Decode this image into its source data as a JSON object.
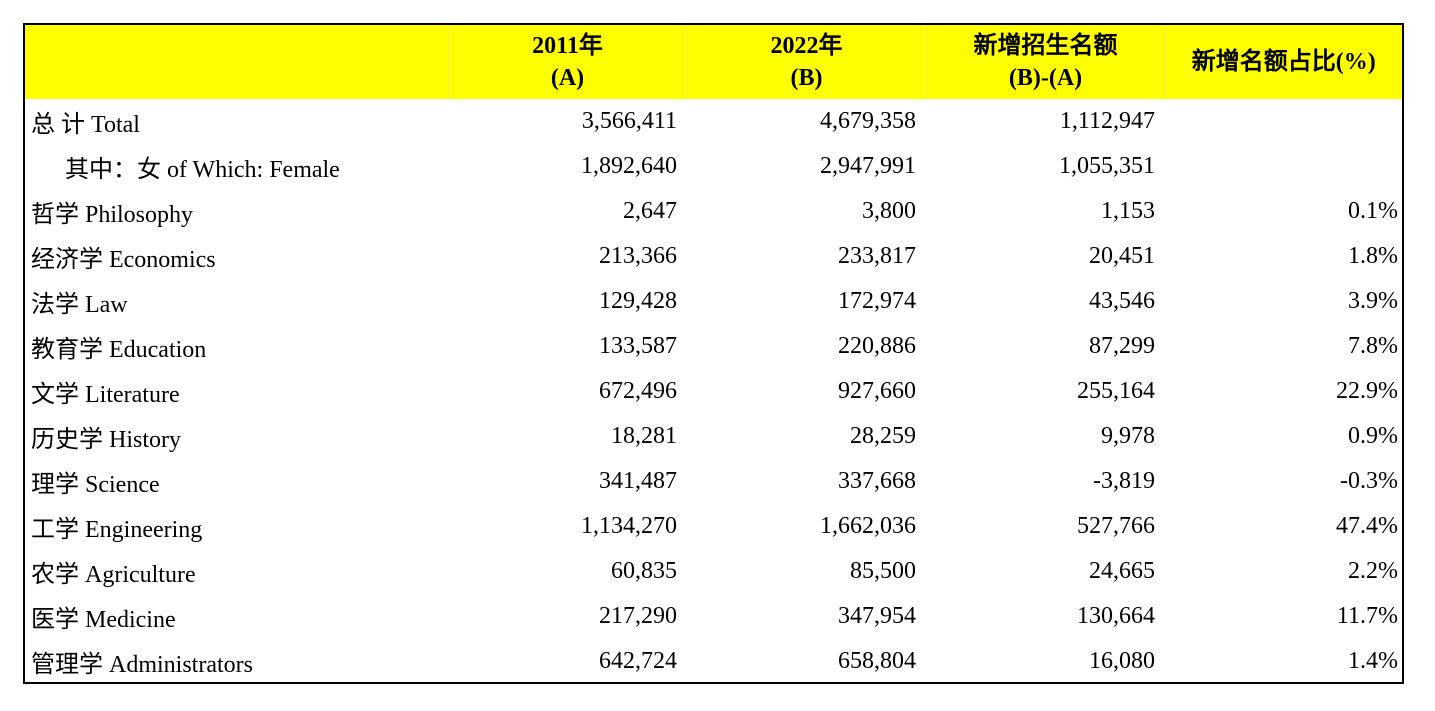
{
  "table": {
    "headers": [
      {
        "line1": "",
        "line2": ""
      },
      {
        "line1": "2011年",
        "line2": "(A)"
      },
      {
        "line1": "2022年",
        "line2": "(B)"
      },
      {
        "line1": "新增招生名额",
        "line2": "(B)-(A)"
      },
      {
        "line1": "新增名额占比(%)",
        "line2": ""
      }
    ],
    "rows": [
      {
        "label": "总  计 Total",
        "a": "3,566,411",
        "b": "4,679,358",
        "diff": "1,112,947",
        "pct": ""
      },
      {
        "label": "其中：女 of Which: Female",
        "a": "1,892,640",
        "b": "2,947,991",
        "diff": "1,055,351",
        "pct": ""
      },
      {
        "label": "哲学 Philosophy",
        "a": "2,647",
        "b": "3,800",
        "diff": "1,153",
        "pct": "0.1%"
      },
      {
        "label": "经济学 Economics",
        "a": "213,366",
        "b": "233,817",
        "diff": "20,451",
        "pct": "1.8%"
      },
      {
        "label": "法学 Law",
        "a": "129,428",
        "b": "172,974",
        "diff": "43,546",
        "pct": "3.9%"
      },
      {
        "label": "教育学 Education",
        "a": "133,587",
        "b": "220,886",
        "diff": "87,299",
        "pct": "7.8%"
      },
      {
        "label": "文学 Literature",
        "a": "672,496",
        "b": "927,660",
        "diff": "255,164",
        "pct": "22.9%"
      },
      {
        "label": "历史学 History",
        "a": "18,281",
        "b": "28,259",
        "diff": "9,978",
        "pct": "0.9%"
      },
      {
        "label": "理学 Science",
        "a": "341,487",
        "b": "337,668",
        "diff": "-3,819",
        "pct": "-0.3%"
      },
      {
        "label": "工学 Engineering",
        "a": "1,134,270",
        "b": "1,662,036",
        "diff": "527,766",
        "pct": "47.4%"
      },
      {
        "label": "农学 Agriculture",
        "a": "60,835",
        "b": "85,500",
        "diff": "24,665",
        "pct": "2.2%"
      },
      {
        "label": "医学 Medicine",
        "a": "217,290",
        "b": "347,954",
        "diff": "130,664",
        "pct": "11.7%"
      },
      {
        "label": "管理学 Administrators",
        "a": "642,724",
        "b": "658,804",
        "diff": "16,080",
        "pct": "1.4%"
      }
    ]
  },
  "colors": {
    "header_background": "#ffff00",
    "border": "#000000",
    "text": "#000000"
  }
}
